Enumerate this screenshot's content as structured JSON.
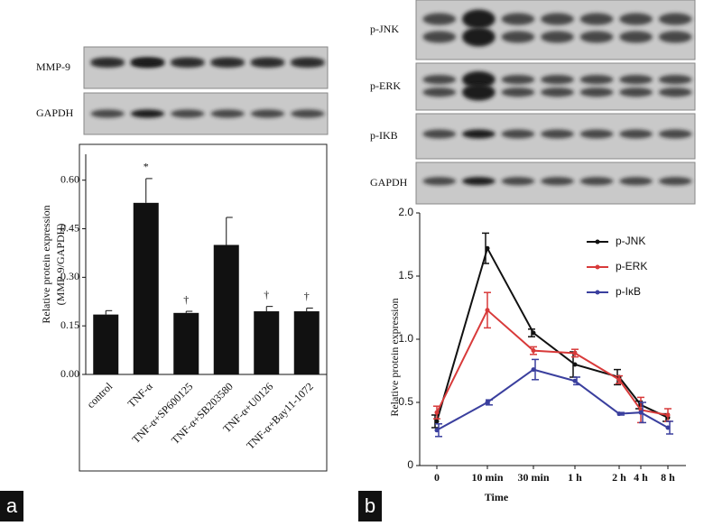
{
  "panels": [
    {
      "label": "a",
      "blots": [
        "MMP-9",
        "GAPDH"
      ]
    },
    {
      "label": "b",
      "blots": [
        "p-JNK",
        "p-ERK",
        "p-IKB",
        "GAPDH"
      ]
    }
  ],
  "chart_data": [
    {
      "type": "bar",
      "ylabel": [
        "Relative protein expression",
        "(MMP-9/GAPDH)"
      ],
      "categories": [
        "control",
        "TNF-α",
        "TNF-α+SP600125",
        "TNF-α+SB203580",
        "TNF-α+U0126",
        "TNF-α+Bay11-1072"
      ],
      "values": [
        0.185,
        0.53,
        0.19,
        0.4,
        0.195,
        0.195
      ],
      "errors": [
        0.012,
        0.075,
        0.005,
        0.085,
        0.015,
        0.01
      ],
      "annotations": [
        null,
        "*",
        "†",
        null,
        "†",
        "†"
      ],
      "color": "#111111",
      "ylim": [
        0,
        0.68
      ],
      "yticks": [
        {
          "value": 0,
          "label": "0.00"
        },
        {
          "value": 0.15,
          "label": "0.15"
        },
        {
          "value": 0.3,
          "label": "0.30"
        },
        {
          "value": 0.45,
          "label": "0.45"
        },
        {
          "value": 0.6,
          "label": "0.60"
        }
      ]
    },
    {
      "type": "line",
      "xlabel": "Time",
      "ylabel": "Relative protein expression",
      "categories": [
        "0",
        "10 min",
        "30 min",
        "1 h",
        "2 h",
        "4 h",
        "8 h"
      ],
      "series": [
        {
          "name": "p-JNK",
          "color": "#111111",
          "values": [
            0.35,
            1.72,
            1.05,
            0.8,
            0.7,
            0.48,
            0.38
          ],
          "errors": [
            0.05,
            0.12,
            0.03,
            0.1,
            0.06,
            0.03,
            0.03
          ]
        },
        {
          "name": "p-ERK",
          "color": "#d83a3a",
          "values": [
            0.42,
            1.23,
            0.91,
            0.89,
            0.68,
            0.44,
            0.4
          ],
          "errors": [
            0.05,
            0.14,
            0.03,
            0.03,
            0.03,
            0.1,
            0.05
          ]
        },
        {
          "name": "p-IκB",
          "color": "#3a3f9e",
          "values": [
            0.28,
            0.5,
            0.76,
            0.67,
            0.41,
            0.42,
            0.3
          ],
          "errors": [
            0.05,
            0.02,
            0.08,
            0.03,
            0.01,
            0.08,
            0.05
          ]
        }
      ],
      "ylim": [
        0,
        2.0
      ],
      "yticks": [
        0,
        {
          "value": 0.5,
          "label": "0.5"
        },
        {
          "value": 1,
          "label": "1.0"
        },
        {
          "value": 1.5,
          "label": "1.5"
        },
        {
          "value": 2,
          "label": "2.0"
        }
      ],
      "legend": "upper right"
    }
  ]
}
